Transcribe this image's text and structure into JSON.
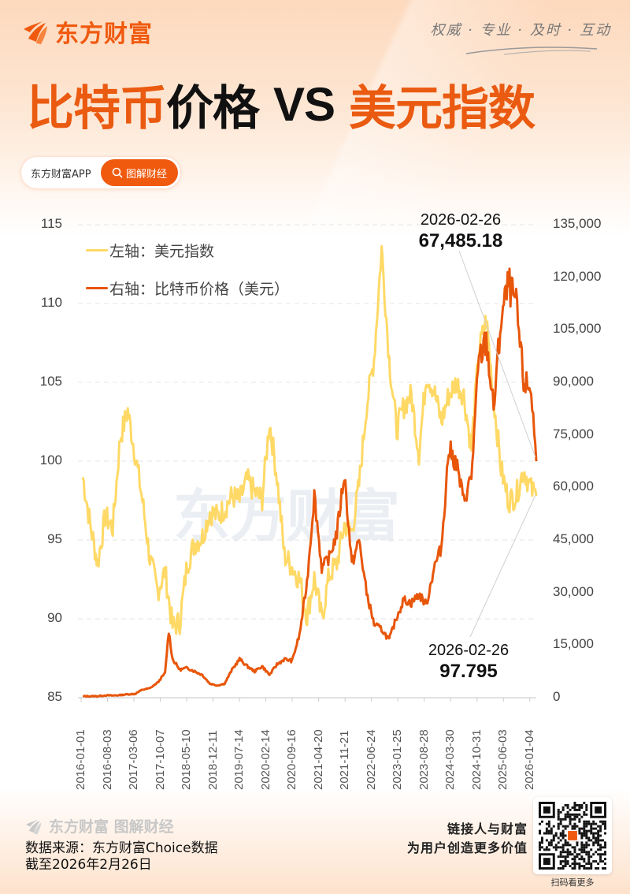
{
  "brand": {
    "name": "东方财富",
    "slogan": "权威 · 专业 · 及时 · 互动",
    "accent_color": "#f05a0f"
  },
  "headline": {
    "part1": "比特币",
    "part2": "价格",
    "vs": "VS",
    "part3": "美元指数"
  },
  "pill": {
    "app_label": "东方财富APP",
    "button_label": "图解财经",
    "button_icon": "search-icon"
  },
  "chart_data": {
    "type": "line",
    "title": "比特币价格 VS 美元指数",
    "xlabel": "",
    "ylabel_left": "美元指数",
    "ylabel_right": "比特币价格（美元）",
    "ylim_left": [
      85,
      115
    ],
    "ylim_right": [
      0,
      135000
    ],
    "left_ticks": [
      "115",
      "110",
      "105",
      "100",
      "95",
      "90",
      "85"
    ],
    "right_ticks": [
      "135,000",
      "120,000",
      "105,000",
      "90,000",
      "75,000",
      "60,000",
      "45,000",
      "30,000",
      "15,000",
      "0"
    ],
    "x_tick_labels": [
      "2016-01-01",
      "2016-08-03",
      "2017-03-06",
      "2017-10-07",
      "2018-05-10",
      "2018-12-11",
      "2019-07-14",
      "2020-02-14",
      "2020-09-16",
      "2021-04-20",
      "2021-11-21",
      "2022-06-24",
      "2023-01-25",
      "2023-08-28",
      "2024-03-30",
      "2024-10-31",
      "2025-06-03",
      "2026-01-04"
    ],
    "grid": "horizontal dashed",
    "legend": [
      {
        "label": "左轴：美元指数",
        "color": "#ffd966"
      },
      {
        "label": "右轴：比特币价格（美元）",
        "color": "#e8560a"
      }
    ],
    "legend_position": "top-left",
    "series": [
      {
        "name": "美元指数",
        "axis": "left",
        "color": "#ffd966",
        "x": [
          "2016-01",
          "2016-03",
          "2016-05",
          "2016-07",
          "2016-09",
          "2016-11",
          "2017-01",
          "2017-03",
          "2017-05",
          "2017-07",
          "2017-09",
          "2017-11",
          "2018-01",
          "2018-03",
          "2018-05",
          "2018-07",
          "2018-09",
          "2018-11",
          "2019-01",
          "2019-03",
          "2019-05",
          "2019-07",
          "2019-09",
          "2019-11",
          "2020-01",
          "2020-03",
          "2020-05",
          "2020-07",
          "2020-09",
          "2020-11",
          "2021-01",
          "2021-03",
          "2021-05",
          "2021-07",
          "2021-09",
          "2021-11",
          "2022-01",
          "2022-03",
          "2022-05",
          "2022-07",
          "2022-09",
          "2022-11",
          "2023-01",
          "2023-03",
          "2023-05",
          "2023-07",
          "2023-09",
          "2023-11",
          "2024-01",
          "2024-03",
          "2024-05",
          "2024-07",
          "2024-09",
          "2024-11",
          "2025-01",
          "2025-03",
          "2025-05",
          "2025-07",
          "2025-09",
          "2025-11",
          "2026-01",
          "2026-02-26"
        ],
        "values": [
          99.0,
          96.0,
          93.5,
          96.5,
          95.8,
          101.5,
          103.2,
          100.5,
          97.5,
          93.8,
          91.8,
          93.0,
          89.5,
          89.8,
          93.5,
          94.8,
          95.2,
          96.8,
          96.5,
          97.0,
          97.8,
          97.5,
          98.8,
          98.0,
          97.6,
          102.5,
          99.0,
          94.0,
          93.3,
          92.5,
          90.2,
          92.6,
          90.0,
          92.8,
          93.5,
          96.0,
          95.5,
          98.5,
          103.5,
          106.5,
          113.5,
          106.5,
          102.0,
          103.5,
          104.2,
          100.5,
          105.5,
          104.5,
          102.5,
          104.2,
          105.0,
          104.2,
          100.8,
          107.0,
          109.0,
          104.0,
          99.5,
          97.5,
          97.8,
          99.5,
          98.2,
          97.8
        ]
      },
      {
        "name": "比特币价格（美元）",
        "axis": "right",
        "color": "#e8560a",
        "x": [
          "2016-01",
          "2016-03",
          "2016-05",
          "2016-07",
          "2016-09",
          "2016-11",
          "2017-01",
          "2017-03",
          "2017-05",
          "2017-07",
          "2017-09",
          "2017-11",
          "2017-12",
          "2018-01",
          "2018-03",
          "2018-05",
          "2018-07",
          "2018-09",
          "2018-11",
          "2019-01",
          "2019-03",
          "2019-05",
          "2019-07",
          "2019-09",
          "2019-11",
          "2020-01",
          "2020-03",
          "2020-05",
          "2020-07",
          "2020-09",
          "2020-11",
          "2021-01",
          "2021-03",
          "2021-05",
          "2021-07",
          "2021-09",
          "2021-11",
          "2022-01",
          "2022-03",
          "2022-05",
          "2022-07",
          "2022-09",
          "2022-11",
          "2023-01",
          "2023-03",
          "2023-05",
          "2023-07",
          "2023-09",
          "2023-11",
          "2024-01",
          "2024-03",
          "2024-05",
          "2024-07",
          "2024-09",
          "2024-11",
          "2025-01",
          "2025-03",
          "2025-05",
          "2025-07",
          "2025-09",
          "2025-11",
          "2026-01",
          "2026-02-26"
        ],
        "values": [
          430,
          420,
          450,
          660,
          610,
          740,
          970,
          1100,
          2300,
          2700,
          4300,
          7000,
          19000,
          11000,
          8000,
          8500,
          7500,
          6500,
          4000,
          3500,
          4000,
          8000,
          11000,
          9000,
          7500,
          9000,
          6500,
          9500,
          11000,
          10500,
          18000,
          33000,
          58000,
          37000,
          40000,
          47000,
          64000,
          38000,
          45000,
          30000,
          21000,
          19500,
          16500,
          23000,
          28000,
          27000,
          29500,
          26500,
          37000,
          43000,
          71000,
          67000,
          56000,
          63000,
          96000,
          102000,
          82000,
          108000,
          118000,
          112000,
          90000,
          88000,
          67485.18
        ]
      }
    ],
    "annotations": [
      {
        "date": "2026-02-26",
        "value": "67,485.18",
        "series": "比特币价格（美元）"
      },
      {
        "date": "2026-02-26",
        "value": "97.795",
        "series": "美元指数"
      }
    ]
  },
  "footer": {
    "logo_text": "东方财富 图解财经",
    "source_line1": "数据来源：东方财富Choice数据",
    "source_line2": "截至2026年2月26日",
    "tagline_line1": "链接人与财富",
    "tagline_line2": "为用户创造更多价值",
    "qr_caption": "扫码看更多"
  }
}
